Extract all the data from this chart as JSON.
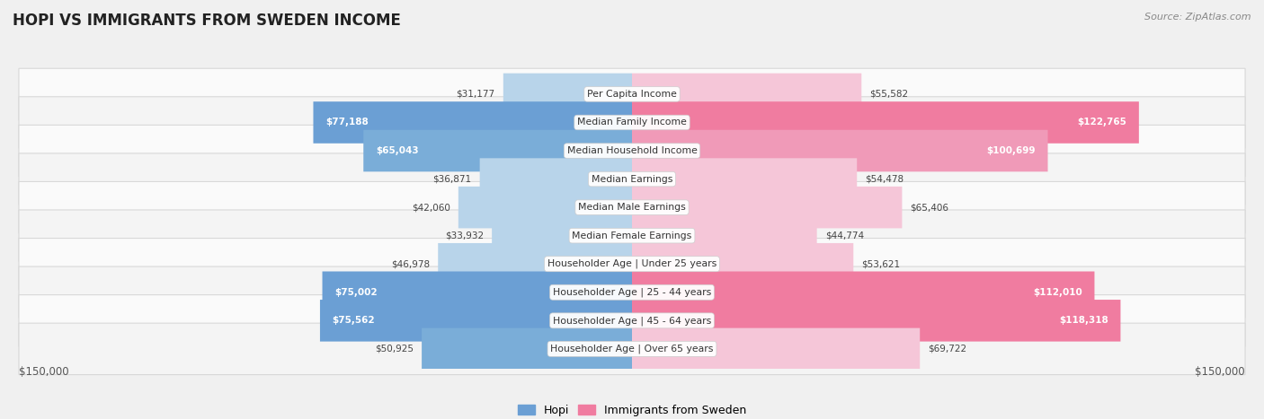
{
  "title": "HOPI VS IMMIGRANTS FROM SWEDEN INCOME",
  "source": "Source: ZipAtlas.com",
  "categories": [
    "Per Capita Income",
    "Median Family Income",
    "Median Household Income",
    "Median Earnings",
    "Median Male Earnings",
    "Median Female Earnings",
    "Householder Age | Under 25 years",
    "Householder Age | 25 - 44 years",
    "Householder Age | 45 - 64 years",
    "Householder Age | Over 65 years"
  ],
  "hopi_values": [
    31177,
    77188,
    65043,
    36871,
    42060,
    33932,
    46978,
    75002,
    75562,
    50925
  ],
  "sweden_values": [
    55582,
    122765,
    100699,
    54478,
    65406,
    44774,
    53621,
    112010,
    118318,
    69722
  ],
  "hopi_labels": [
    "$31,177",
    "$77,188",
    "$65,043",
    "$36,871",
    "$42,060",
    "$33,932",
    "$46,978",
    "$75,002",
    "$75,562",
    "$50,925"
  ],
  "sweden_labels": [
    "$55,582",
    "$122,765",
    "$100,699",
    "$54,478",
    "$65,406",
    "$44,774",
    "$53,621",
    "$112,010",
    "$118,318",
    "$69,722"
  ],
  "hopi_colors": [
    "#b8d4ea",
    "#6b9fd4",
    "#7aadd8",
    "#b8d4ea",
    "#b8d4ea",
    "#b8d4ea",
    "#b8d4ea",
    "#6b9fd4",
    "#6b9fd4",
    "#7aadd8"
  ],
  "sweden_colors": [
    "#f5c6d8",
    "#f07ca0",
    "#f09ab8",
    "#f5c6d8",
    "#f5c6d8",
    "#f5c6d8",
    "#f5c6d8",
    "#f07ca0",
    "#f07ca0",
    "#f5c6d8"
  ],
  "hopi_label_white": [
    false,
    true,
    true,
    false,
    false,
    false,
    false,
    true,
    true,
    false
  ],
  "sweden_label_white": [
    false,
    true,
    true,
    false,
    false,
    false,
    false,
    true,
    true,
    false
  ],
  "max_value": 150000,
  "legend_hopi": "Hopi",
  "legend_sweden": "Immigrants from Sweden",
  "axis_label_left": "$150,000",
  "axis_label_right": "$150,000",
  "background_color": "#f0f0f0",
  "row_colors": [
    "#fafafa",
    "#f4f4f4",
    "#fafafa",
    "#f4f4f4",
    "#fafafa",
    "#f4f4f4",
    "#fafafa",
    "#f4f4f4",
    "#fafafa",
    "#f4f4f4"
  ]
}
